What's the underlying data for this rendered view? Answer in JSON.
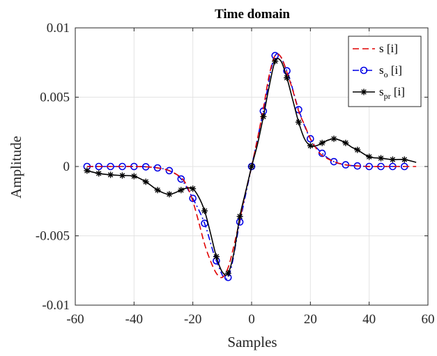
{
  "chart_data": {
    "type": "line",
    "title": "Time domain",
    "xlabel": "Samples",
    "ylabel": "Amplitude",
    "xlim": [
      -60,
      60
    ],
    "ylim": [
      -0.01,
      0.01
    ],
    "xticks": [
      -60,
      -40,
      -20,
      0,
      20,
      40,
      60
    ],
    "yticks": [
      -0.01,
      -0.005,
      0,
      0.005,
      0.01
    ],
    "xtick_labels": [
      "-60",
      "-40",
      "-20",
      "0",
      "20",
      "40",
      "60"
    ],
    "ytick_labels": [
      "-0.01",
      "-0.005",
      "0",
      "0.005",
      "0.01"
    ],
    "grid": true,
    "legend_position": "top-right",
    "series": [
      {
        "name": "s [i]",
        "legend_base": "s",
        "legend_sub": "",
        "legend_suffix": " [i]",
        "color": "#e00000",
        "line_style": "dashed",
        "marker": "none",
        "x": [
          -56,
          -52,
          -48,
          -44,
          -40,
          -36,
          -32,
          -28,
          -24,
          -22,
          -20,
          -18,
          -16,
          -14,
          -12,
          -10,
          -8,
          -6,
          -4,
          -2,
          0,
          2,
          4,
          6,
          8,
          10,
          12,
          14,
          16,
          18,
          20,
          22,
          24,
          28,
          32,
          36,
          40,
          44,
          48,
          52,
          56
        ],
        "y": [
          0,
          0,
          0,
          0,
          0,
          -2e-05,
          -0.0001,
          -0.0003,
          -0.0008,
          -0.0014,
          -0.0025,
          -0.004,
          -0.0056,
          -0.0068,
          -0.0077,
          -0.008,
          -0.0073,
          -0.0057,
          -0.0038,
          -0.0018,
          0,
          0.002,
          0.0042,
          0.0066,
          0.008,
          0.0079,
          0.0068,
          0.0055,
          0.004,
          0.003,
          0.002,
          0.0013,
          0.0008,
          0.00035,
          0.00012,
          4e-05,
          0,
          0,
          0,
          0,
          0
        ]
      },
      {
        "name": "s_o [i]",
        "legend_base": "s",
        "legend_sub": "o",
        "legend_suffix": " [i]",
        "color": "#0000e6",
        "line_style": "dashdot",
        "marker": "circle",
        "x": [
          -56,
          -52,
          -48,
          -44,
          -40,
          -36,
          -32,
          -28,
          -24,
          -20,
          -16,
          -12,
          -8,
          -4,
          0,
          4,
          8,
          12,
          16,
          20,
          24,
          28,
          32,
          36,
          40,
          44,
          48,
          52
        ],
        "y": [
          0,
          0,
          0,
          0,
          0,
          -2e-05,
          -0.0001,
          -0.0003,
          -0.0009,
          -0.0023,
          -0.0041,
          -0.0068,
          -0.008,
          -0.004,
          0,
          0.004,
          0.008,
          0.0069,
          0.0041,
          0.002,
          0.00095,
          0.00035,
          0.00012,
          4e-05,
          0,
          0,
          0,
          0
        ]
      },
      {
        "name": "s_pr [i]",
        "legend_base": "s",
        "legend_sub": "pr",
        "legend_suffix": " [i]",
        "color": "#000000",
        "line_style": "solid",
        "marker": "asterisk",
        "x": [
          -56,
          -52,
          -48,
          -44,
          -40,
          -36,
          -32,
          -28,
          -24,
          -20,
          -16,
          -12,
          -8,
          -4,
          0,
          4,
          8,
          12,
          16,
          20,
          24,
          28,
          32,
          36,
          40,
          44,
          48,
          52
        ],
        "y": [
          -0.0003,
          -0.0005,
          -0.0006,
          -0.00065,
          -0.0007,
          -0.0011,
          -0.0017,
          -0.002,
          -0.0017,
          -0.0016,
          -0.0032,
          -0.0065,
          -0.0077,
          -0.0036,
          0,
          0.0036,
          0.0076,
          0.0064,
          0.0032,
          0.0015,
          0.0017,
          0.002,
          0.0017,
          0.0012,
          0.0007,
          0.0006,
          0.0005,
          0.0005
        ],
        "line_x": [
          -56,
          -52,
          -48,
          -44,
          -40,
          -36,
          -32,
          -28,
          -24,
          -22,
          -20,
          -18,
          -16,
          -14,
          -12,
          -10,
          -8,
          -6,
          -4,
          -2,
          0,
          2,
          4,
          6,
          8,
          10,
          12,
          14,
          16,
          18,
          20,
          22,
          24,
          26,
          28,
          30,
          32,
          34,
          36,
          40,
          44,
          48,
          52,
          56
        ],
        "line_y": [
          -0.0003,
          -0.0005,
          -0.0006,
          -0.00065,
          -0.0007,
          -0.0011,
          -0.0017,
          -0.002,
          -0.0017,
          -0.00155,
          -0.0016,
          -0.0022,
          -0.0032,
          -0.0048,
          -0.0065,
          -0.0076,
          -0.0077,
          -0.0062,
          -0.0036,
          -0.0018,
          0,
          0.0016,
          0.0036,
          0.0058,
          0.0076,
          0.0076,
          0.0064,
          0.0048,
          0.0032,
          0.002,
          0.0015,
          0.0015,
          0.0017,
          0.0019,
          0.002,
          0.0019,
          0.0017,
          0.0014,
          0.0012,
          0.0007,
          0.0006,
          0.0005,
          0.0005,
          0.0003
        ]
      }
    ]
  }
}
